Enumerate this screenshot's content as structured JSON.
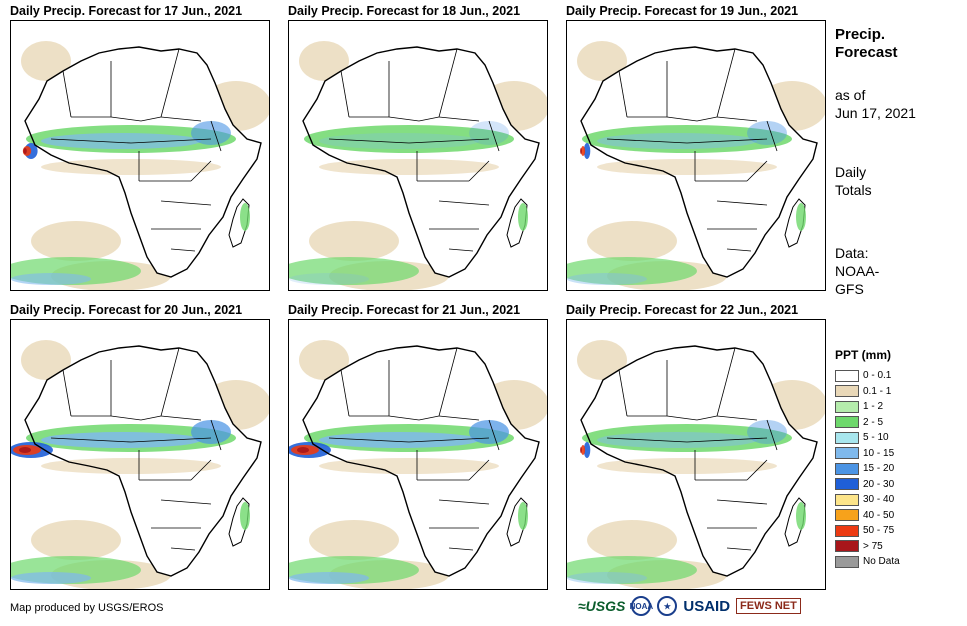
{
  "panels": [
    {
      "title": "Daily Precip. Forecast for 17 Jun., 2021",
      "intensity": "high"
    },
    {
      "title": "Daily Precip. Forecast for 18 Jun., 2021",
      "intensity": "low"
    },
    {
      "title": "Daily Precip. Forecast for 19 Jun., 2021",
      "intensity": "medium"
    },
    {
      "title": "Daily Precip. Forecast for 20 Jun., 2021",
      "intensity": "extreme"
    },
    {
      "title": "Daily Precip. Forecast for 21 Jun., 2021",
      "intensity": "extreme"
    },
    {
      "title": "Daily Precip. Forecast for 22 Jun., 2021",
      "intensity": "medium"
    }
  ],
  "side": {
    "heading_line1": "Precip.",
    "heading_line2": "Forecast",
    "asof_line1": "as of",
    "asof_line2": "Jun 17, 2021",
    "totals_line1": "Daily",
    "totals_line2": "Totals",
    "data_line1": "Data:",
    "data_line2": "NOAA-",
    "data_line3": "GFS"
  },
  "legend": {
    "title": "PPT (mm)",
    "items": [
      {
        "label": "0 - 0.1",
        "color": "#ffffff"
      },
      {
        "label": "0.1 - 1",
        "color": "#e9d8b8"
      },
      {
        "label": "1 - 2",
        "color": "#b5ecac"
      },
      {
        "label": "2 - 5",
        "color": "#6ed86c"
      },
      {
        "label": "5 - 10",
        "color": "#a8e6ee"
      },
      {
        "label": "10 - 15",
        "color": "#7fb9ec"
      },
      {
        "label": "15 - 20",
        "color": "#4b94e4"
      },
      {
        "label": "20 - 30",
        "color": "#1f5fd8"
      },
      {
        "label": "30 - 40",
        "color": "#fde58a"
      },
      {
        "label": "40 - 50",
        "color": "#f7a21b"
      },
      {
        "label": "50 - 75",
        "color": "#ec3a12"
      },
      {
        "label": "> 75",
        "color": "#a8161a"
      },
      {
        "label": "No Data",
        "color": "#9a9a9a"
      }
    ]
  },
  "footer": {
    "credit": "Map produced by USGS/EROS"
  },
  "logos": {
    "usgs": "≈USGS",
    "noaa": "NOAA",
    "usaid": "USAID",
    "fews": "FEWS NET"
  }
}
